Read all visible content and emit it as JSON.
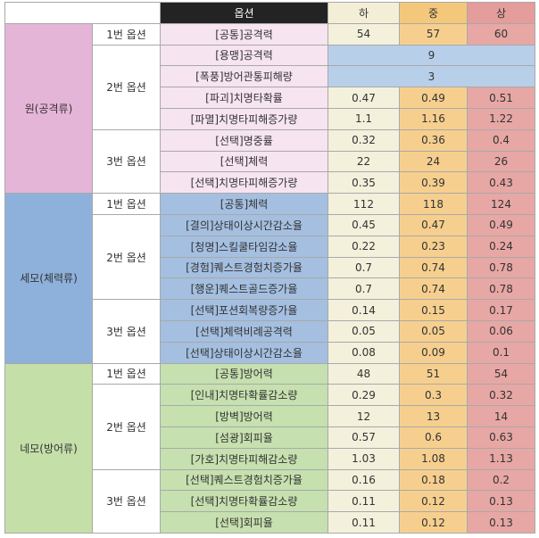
{
  "header": {
    "option": "옵션",
    "low": "하",
    "mid": "중",
    "high": "상"
  },
  "groups": [
    {
      "category": "원(공격류)",
      "theme": "pink",
      "slots": [
        {
          "label": "1번 옵션",
          "rows": [
            {
              "name": "[공통]공격력",
              "values": [
                "54",
                "57",
                "60"
              ]
            }
          ]
        },
        {
          "label": "2번 옵션",
          "rows": [
            {
              "name": "[용맹]공격력",
              "merged": "9"
            },
            {
              "name": "[폭풍]방어관통피해량",
              "merged": "3"
            },
            {
              "name": "[파괴]치명타확률",
              "values": [
                "0.47",
                "0.49",
                "0.51"
              ]
            },
            {
              "name": "[파멸]치명타피해증가량",
              "values": [
                "1.1",
                "1.16",
                "1.22"
              ]
            }
          ]
        },
        {
          "label": "3번 옵션",
          "rows": [
            {
              "name": "[선택]명중률",
              "values": [
                "0.32",
                "0.36",
                "0.4"
              ]
            },
            {
              "name": "[선택]체력",
              "values": [
                "22",
                "24",
                "26"
              ]
            },
            {
              "name": "[선택]치명타피해증가량",
              "values": [
                "0.35",
                "0.39",
                "0.43"
              ]
            }
          ]
        }
      ]
    },
    {
      "category": "세모(체력류)",
      "theme": "blue",
      "slots": [
        {
          "label": "1번 옵션",
          "rows": [
            {
              "name": "[공통]체력",
              "values": [
                "112",
                "118",
                "124"
              ]
            }
          ]
        },
        {
          "label": "2번 옵션",
          "rows": [
            {
              "name": "[결의]상태이상시간감소율",
              "values": [
                "0.45",
                "0.47",
                "0.49"
              ]
            },
            {
              "name": "[청명]스킬쿨타임감소율",
              "values": [
                "0.22",
                "0.23",
                "0.24"
              ]
            },
            {
              "name": "[경험]퀘스트경험치증가율",
              "values": [
                "0.7",
                "0.74",
                "0.78"
              ]
            },
            {
              "name": "[행운]퀘스트골드증가율",
              "values": [
                "0.7",
                "0.74",
                "0.78"
              ]
            }
          ]
        },
        {
          "label": "3번 옵션",
          "rows": [
            {
              "name": "[선택]포션회복량증가율",
              "values": [
                "0.14",
                "0.15",
                "0.17"
              ]
            },
            {
              "name": "[선택]체력비례공격력",
              "values": [
                "0.05",
                "0.05",
                "0.06"
              ]
            },
            {
              "name": "[선택]상태이상시간감소율",
              "values": [
                "0.08",
                "0.09",
                "0.1"
              ]
            }
          ]
        }
      ]
    },
    {
      "category": "네모(방어류)",
      "theme": "green",
      "slots": [
        {
          "label": "1번 옵션",
          "rows": [
            {
              "name": "[공통]방어력",
              "values": [
                "48",
                "51",
                "54"
              ]
            }
          ]
        },
        {
          "label": "2번 옵션",
          "rows": [
            {
              "name": "[인내]치명타확률감소량",
              "values": [
                "0.29",
                "0.3",
                "0.32"
              ]
            },
            {
              "name": "[방벽]방어력",
              "values": [
                "12",
                "13",
                "14"
              ]
            },
            {
              "name": "[섬광]회피율",
              "values": [
                "0.57",
                "0.6",
                "0.63"
              ]
            },
            {
              "name": "[가호]치명타피해감소량",
              "values": [
                "1.03",
                "1.08",
                "1.13"
              ]
            }
          ]
        },
        {
          "label": "3번 옵션",
          "rows": [
            {
              "name": "[선택]퀘스트경험치증가율",
              "values": [
                "0.16",
                "0.18",
                "0.2"
              ]
            },
            {
              "name": "[선택]치명타확률감소량",
              "values": [
                "0.11",
                "0.12",
                "0.13"
              ]
            },
            {
              "name": "[선택]회피율",
              "values": [
                "0.11",
                "0.12",
                "0.13"
              ]
            }
          ]
        }
      ]
    }
  ]
}
